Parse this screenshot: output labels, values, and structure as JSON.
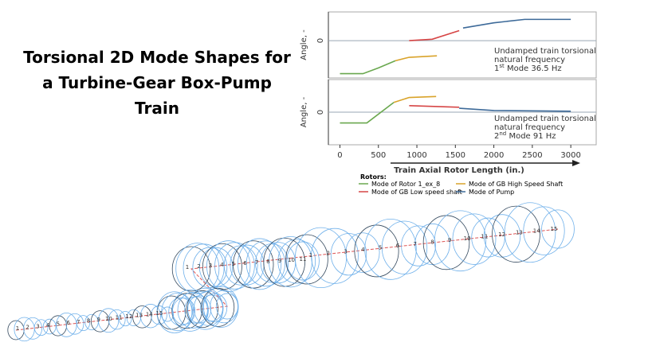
{
  "title_lines": [
    "Torsional 2D Mode Shapes for",
    "a Turbine-Gear Box-Pump",
    "Train"
  ],
  "chart_data": [
    {
      "type": "line",
      "ylabel": "Angle, -",
      "xlim": [
        -150,
        3330
      ],
      "ylim": [
        -1.3,
        1
      ],
      "yticks": [
        0
      ],
      "annotation": {
        "lines": [
          "Undamped train torsional",
          "natural frequency"
        ],
        "mode_number": "1",
        "mode_suffix": "st",
        "mode_text": " Mode 36.5 Hz"
      },
      "series": [
        {
          "name": "Mode of Rotor 1_ex_8",
          "color": "#6aa84f",
          "x": [
            0,
            300,
            500,
            720
          ],
          "values": [
            -1.15,
            -1.15,
            -0.95,
            -0.7
          ]
        },
        {
          "name": "Mode of GB High Speed Shaft",
          "color": "#d9a32a",
          "x": [
            720,
            900,
            1260
          ],
          "values": [
            -0.7,
            -0.58,
            -0.53
          ]
        },
        {
          "name": "Mode of GB Low speed shaft",
          "color": "#d64545",
          "x": [
            900,
            1200,
            1550
          ],
          "values": [
            0,
            0.05,
            0.35
          ]
        },
        {
          "name": "Mode of Pump",
          "color": "#3d6a99",
          "x": [
            1600,
            2000,
            2400,
            3000
          ],
          "values": [
            0.44,
            0.62,
            0.74,
            0.74
          ]
        }
      ]
    },
    {
      "type": "line",
      "ylabel": "Angle, -",
      "xlabel": "Train Axial Rotor Length (in.)",
      "xlim": [
        -150,
        3330
      ],
      "ylim": [
        -1,
        1
      ],
      "yticks": [
        0
      ],
      "xticks": [
        0,
        500,
        1000,
        1500,
        2000,
        2500,
        3000
      ],
      "annotation": {
        "lines": [
          "Undamped train torsional",
          "natural frequency"
        ],
        "mode_number": "2",
        "mode_suffix": "nd",
        "mode_text": " Mode 91 Hz"
      },
      "series": [
        {
          "color": "#6aa84f",
          "x": [
            0,
            350,
            700
          ],
          "values": [
            -0.33,
            -0.33,
            0.3
          ]
        },
        {
          "color": "#d9a32a",
          "x": [
            700,
            900,
            1250
          ],
          "values": [
            0.3,
            0.45,
            0.48
          ]
        },
        {
          "color": "#d64545",
          "x": [
            900,
            1550
          ],
          "values": [
            0.2,
            0.15
          ]
        },
        {
          "color": "#3d6a99",
          "x": [
            1550,
            2000,
            3000
          ],
          "values": [
            0.12,
            0.05,
            0.03
          ]
        }
      ]
    }
  ],
  "legend_title": "Rotors:",
  "rotor_labels": [
    [
      "1",
      "2",
      "3",
      "4",
      "5",
      "6",
      "7",
      "8",
      "9",
      "10",
      "11",
      "12",
      "13",
      "14",
      "15"
    ],
    [
      "1",
      "2",
      "3",
      "4",
      "5",
      "6",
      "7",
      "8",
      "9",
      "10",
      "11"
    ],
    [
      "1",
      "2",
      "3",
      "4",
      "5",
      "6",
      "7",
      "8",
      "9",
      "10",
      "11",
      "12",
      "13",
      "14",
      "15"
    ]
  ]
}
